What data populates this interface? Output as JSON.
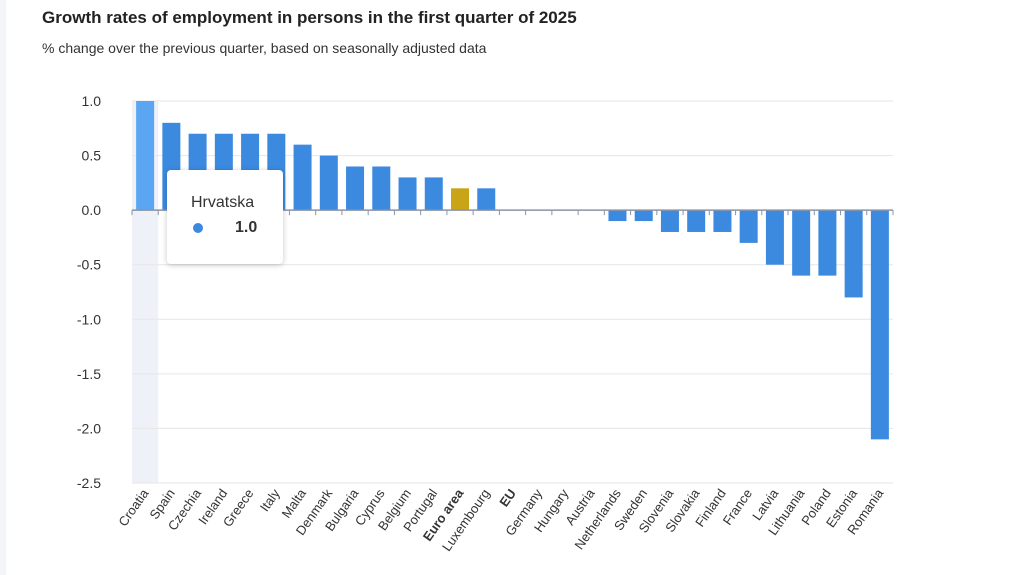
{
  "chart_data": {
    "type": "bar",
    "title": "Growth rates of employment in persons in the first quarter of 2025",
    "subtitle": "% change over the previous quarter, based on seasonally adjusted data",
    "xlabel": "",
    "ylabel": "",
    "ylim": [
      -2.5,
      1.0
    ],
    "yticks": [
      "1.0",
      "0.5",
      "0.0",
      "-0.5",
      "-1.0",
      "-1.5",
      "-2.0",
      "-2.5"
    ],
    "categories": [
      "Croatia",
      "Spain",
      "Czechia",
      "Ireland",
      "Greece",
      "Italy",
      "Malta",
      "Denmark",
      "Bulgaria",
      "Cyprus",
      "Belgium",
      "Portugal",
      "Euro area",
      "Luxembourg",
      "EU",
      "Germany",
      "Hungary",
      "Austria",
      "Netherlands",
      "Sweden",
      "Slovenia",
      "Slovakia",
      "Finland",
      "France",
      "Latvia",
      "Lithuania",
      "Poland",
      "Estonia",
      "Romania"
    ],
    "values": [
      1.0,
      0.8,
      0.7,
      0.7,
      0.7,
      0.7,
      0.6,
      0.5,
      0.4,
      0.4,
      0.3,
      0.3,
      0.2,
      0.2,
      0.0,
      0.0,
      0.0,
      0.0,
      -0.1,
      -0.1,
      -0.2,
      -0.2,
      -0.2,
      -0.3,
      -0.5,
      -0.6,
      -0.6,
      -0.8,
      -2.1
    ],
    "bold_categories": [
      "Euro area",
      "EU"
    ],
    "colors": {
      "bar": "#3b8ae0",
      "highlight_bar": "#5aa6f2",
      "aggregate_bar": "#c8a416",
      "hover_band": "#eef2f8",
      "grid": "#e6e6e6",
      "axis": "#8a93a6",
      "tick_text": "#333333"
    },
    "highlighted_category": "Croatia",
    "tooltip": {
      "name": "Hrvatska",
      "value": "1.0"
    }
  }
}
